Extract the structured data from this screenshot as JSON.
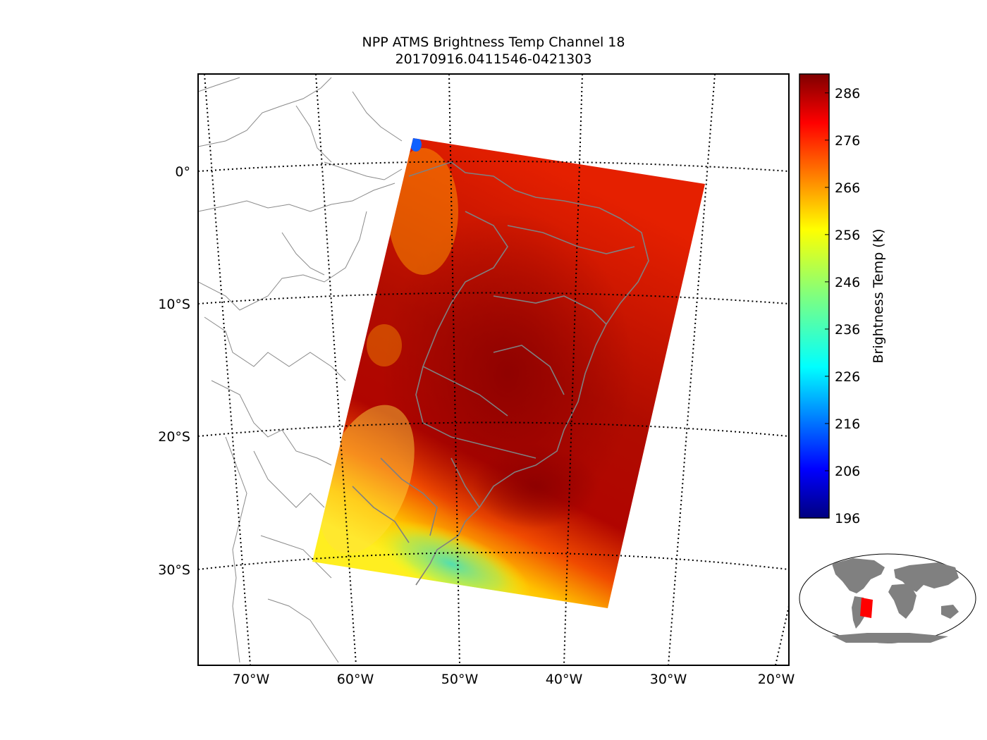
{
  "title_line1": "NPP ATMS Brightness Temp Channel 18",
  "title_line2": "20170916.0411546-0421303",
  "map": {
    "lat_labels": [
      "0°",
      "10°S",
      "20°S",
      "30°S"
    ],
    "lon_labels": [
      "70°W",
      "60°W",
      "50°W",
      "40°W",
      "30°W",
      "20°W"
    ],
    "swath_color": "#dd1f00",
    "coastline_color": "#808080"
  },
  "colorbar": {
    "label": "Brightness Temp (K)",
    "ticks": [
      "286",
      "276",
      "266",
      "256",
      "246",
      "236",
      "226",
      "216",
      "206",
      "196"
    ],
    "min": 196,
    "max": 290,
    "colormap": "jet"
  },
  "inset": {
    "land_color": "#808080",
    "swath_color": "#ff0000"
  }
}
